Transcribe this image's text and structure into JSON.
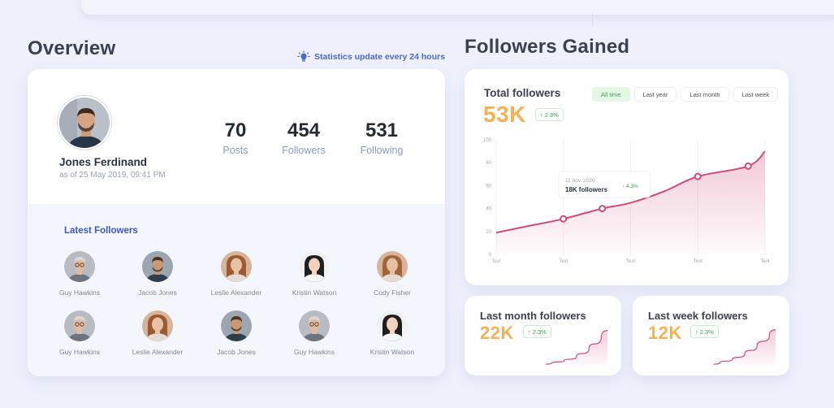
{
  "overview": {
    "title": "Overview",
    "stat_note": "Statistics update every 24 hours",
    "profile": {
      "name": "Jones Ferdinand",
      "date": "as of 25 May 2019, 09:41 PM"
    },
    "stats": [
      {
        "value": "70",
        "label": "Posts"
      },
      {
        "value": "454",
        "label": "Followers"
      },
      {
        "value": "531",
        "label": "Following"
      }
    ],
    "latest_title": "Latest Followers",
    "followers": [
      "Guy Hawkins",
      "Jacob Jones",
      "Leslie Alexander",
      "Kristin Watson",
      "Cody Fisher",
      "Guy Hawkins",
      "Leslie Alexander",
      "Jacob Jones",
      "Guy Hawkins",
      "Kristin Watson"
    ]
  },
  "followers_gained": {
    "title": "Followers Gained",
    "total": {
      "label": "Total followers",
      "value": "53K",
      "change": "2.3%"
    },
    "tabs": [
      "All time",
      "Last year",
      "Last month",
      "Last week"
    ],
    "active_tab": "All time",
    "tooltip": {
      "date": "11 nov. 2020",
      "value": "18K followers",
      "change": "4.3%"
    },
    "last_month": {
      "label": "Last month followers",
      "value": "22K",
      "change": "2.3%"
    },
    "last_week": {
      "label": "Last week followers",
      "value": "12K",
      "change": "2.3%"
    }
  },
  "colors": {
    "accent_orange": "#f7b155",
    "line_pink": "#d14a7a",
    "link_blue": "#3d57c2",
    "positive_green": "#3ba84a"
  },
  "chart_data": {
    "type": "area",
    "title": "Total followers",
    "categories": [
      "Text",
      "Text",
      "Text",
      "Text",
      "Text"
    ],
    "x": [
      0,
      1,
      2,
      3,
      4
    ],
    "y_ticks": [
      "0",
      "20",
      "40",
      "60",
      "80",
      "100"
    ],
    "ylim": [
      0,
      100
    ],
    "series": [
      {
        "name": "Followers",
        "x": [
          0,
          0.5,
          1,
          1.58,
          2,
          2.5,
          3,
          3.75,
          4
        ],
        "values": [
          19,
          25,
          31,
          40,
          45,
          55,
          68,
          77,
          90
        ]
      }
    ],
    "markers": [
      {
        "x": 1,
        "y": 31
      },
      {
        "x": 1.58,
        "y": 40
      },
      {
        "x": 3,
        "y": 68
      },
      {
        "x": 3.75,
        "y": 77
      }
    ]
  },
  "spark_month": [
    2,
    8,
    15,
    30,
    55,
    90
  ],
  "spark_week": [
    2,
    10,
    20,
    38,
    62,
    92
  ]
}
